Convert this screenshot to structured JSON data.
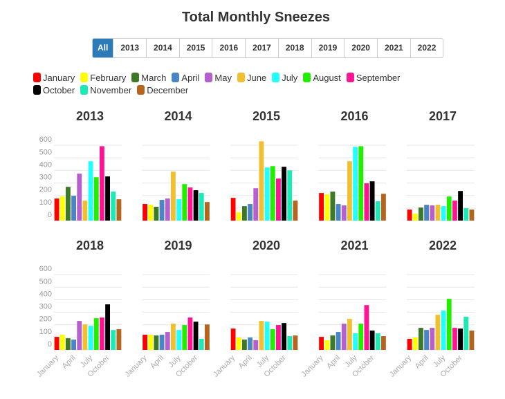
{
  "title": "Total Monthly Sneezes",
  "filters": [
    "All",
    "2013",
    "2014",
    "2015",
    "2016",
    "2017",
    "2018",
    "2019",
    "2020",
    "2021",
    "2022"
  ],
  "legend": [
    {
      "name": "January",
      "color": "#ff0000"
    },
    {
      "name": "February",
      "color": "#ffff00"
    },
    {
      "name": "March",
      "color": "#3c7a28"
    },
    {
      "name": "April",
      "color": "#4a86c5"
    },
    {
      "name": "May",
      "color": "#b65fcf"
    },
    {
      "name": "June",
      "color": "#f0c030"
    },
    {
      "name": "July",
      "color": "#22ffff"
    },
    {
      "name": "August",
      "color": "#22ee00"
    },
    {
      "name": "September",
      "color": "#ff1493"
    },
    {
      "name": "October",
      "color": "#000000"
    },
    {
      "name": "November",
      "color": "#1de9b6"
    },
    {
      "name": "December",
      "color": "#b5651d"
    }
  ],
  "chart_data": [
    {
      "type": "bar",
      "title": "2013",
      "categories": [
        null,
        null,
        null,
        null,
        null,
        null,
        null,
        null,
        null,
        null,
        null,
        null
      ],
      "values": [
        176,
        192,
        269,
        198,
        374,
        159,
        473,
        346,
        593,
        352,
        231,
        170
      ],
      "ylim": [
        0,
        700
      ],
      "yticks": [
        0,
        100,
        200,
        300,
        400,
        500,
        600
      ],
      "ytick_labels": true,
      "grid": true
    },
    {
      "type": "bar",
      "title": "2014",
      "categories": [
        null,
        null,
        null,
        null,
        null,
        null,
        null,
        null,
        null,
        null,
        null,
        null
      ],
      "values": [
        132,
        126,
        110,
        165,
        176,
        390,
        170,
        291,
        264,
        242,
        220,
        148
      ],
      "ylim": [
        0,
        700
      ],
      "yticks": [
        0,
        100,
        200,
        300,
        400,
        500,
        600
      ],
      "ytick_labels": false,
      "grid": true
    },
    {
      "type": "bar",
      "title": "2015",
      "categories": [
        null,
        null,
        null,
        null,
        null,
        null,
        null,
        null,
        null,
        null,
        null,
        null
      ],
      "values": [
        181,
        66,
        115,
        132,
        258,
        632,
        423,
        434,
        335,
        429,
        401,
        159
      ],
      "ylim": [
        0,
        700
      ],
      "yticks": [
        0,
        100,
        200,
        300,
        400,
        500,
        600
      ],
      "ytick_labels": false,
      "grid": true
    },
    {
      "type": "bar",
      "title": "2016",
      "categories": [
        null,
        null,
        null,
        null,
        null,
        null,
        null,
        null,
        null,
        null,
        null,
        null
      ],
      "values": [
        220,
        209,
        231,
        132,
        121,
        473,
        588,
        593,
        297,
        313,
        154,
        214
      ],
      "ylim": [
        0,
        700
      ],
      "yticks": [
        0,
        100,
        200,
        300,
        400,
        500,
        600
      ],
      "ytick_labels": false,
      "grid": true
    },
    {
      "type": "bar",
      "title": "2017",
      "categories": [
        null,
        null,
        null,
        null,
        null,
        null,
        null,
        null,
        null,
        null,
        null,
        null
      ],
      "values": [
        88,
        55,
        104,
        126,
        121,
        126,
        115,
        192,
        159,
        236,
        99,
        88
      ],
      "ylim": [
        0,
        700
      ],
      "yticks": [
        0,
        100,
        200,
        300,
        400,
        500,
        600
      ],
      "ytick_labels": false,
      "grid": true
    },
    {
      "type": "bar",
      "title": "2018",
      "categories": [
        "January",
        null,
        null,
        "April",
        null,
        null,
        "July",
        null,
        null,
        "October",
        null,
        null
      ],
      "values": [
        104,
        121,
        93,
        82,
        231,
        203,
        192,
        253,
        258,
        363,
        159,
        165
      ],
      "ylim": [
        0,
        700
      ],
      "yticks": [
        0,
        100,
        200,
        300,
        400,
        500,
        600
      ],
      "ytick_labels": true,
      "grid": true
    },
    {
      "type": "bar",
      "title": "2019",
      "categories": [
        "January",
        null,
        null,
        "April",
        null,
        null,
        "July",
        null,
        null,
        "October",
        null,
        null
      ],
      "values": [
        121,
        121,
        115,
        121,
        143,
        209,
        159,
        198,
        258,
        225,
        88,
        203
      ],
      "ylim": [
        0,
        700
      ],
      "yticks": [
        0,
        100,
        200,
        300,
        400,
        500,
        600
      ],
      "ytick_labels": false,
      "grid": true
    },
    {
      "type": "bar",
      "title": "2020",
      "categories": [
        "January",
        null,
        null,
        "April",
        null,
        null,
        "July",
        null,
        null,
        "October",
        null,
        null
      ],
      "values": [
        170,
        99,
        82,
        99,
        77,
        231,
        225,
        165,
        198,
        214,
        110,
        115
      ],
      "ylim": [
        0,
        700
      ],
      "yticks": [
        0,
        100,
        200,
        300,
        400,
        500,
        600
      ],
      "ytick_labels": false,
      "grid": true
    },
    {
      "type": "bar",
      "title": "2021",
      "categories": [
        "January",
        null,
        null,
        "April",
        null,
        null,
        "July",
        null,
        null,
        "October",
        null,
        null
      ],
      "values": [
        104,
        77,
        115,
        143,
        209,
        247,
        132,
        209,
        357,
        154,
        132,
        110
      ],
      "ylim": [
        0,
        700
      ],
      "yticks": [
        0,
        100,
        200,
        300,
        400,
        500,
        600
      ],
      "ytick_labels": false,
      "grid": true
    },
    {
      "type": "bar",
      "title": "2022",
      "categories": [
        "January",
        null,
        null,
        "April",
        null,
        null,
        "July",
        null,
        null,
        "October",
        null,
        null
      ],
      "values": [
        88,
        99,
        176,
        159,
        176,
        280,
        313,
        407,
        176,
        170,
        264,
        154
      ],
      "ylim": [
        0,
        700
      ],
      "yticks": [
        0,
        100,
        200,
        300,
        400,
        500,
        600
      ],
      "ytick_labels": false,
      "grid": true
    }
  ]
}
